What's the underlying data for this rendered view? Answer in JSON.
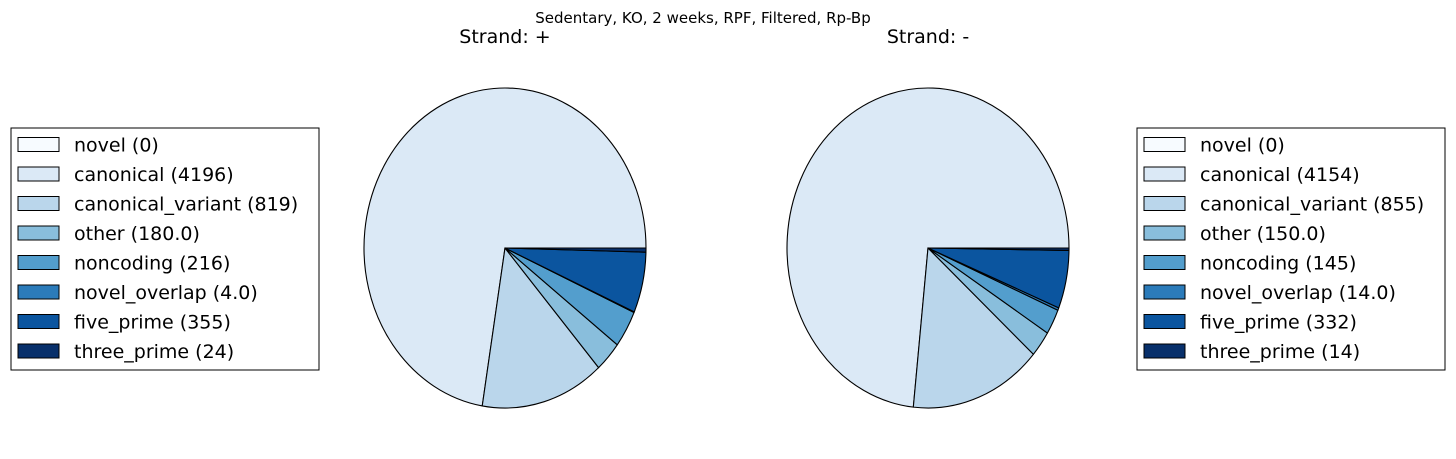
{
  "chart_data": [
    {
      "type": "pie",
      "suptitle": "Sedentary, KO, 2 weeks, RPF, Filtered, Rp-Bp",
      "title": "Strand: +",
      "legend_position": "left",
      "categories": [
        "novel",
        "canonical",
        "canonical_variant",
        "other",
        "noncoding",
        "novel_overlap",
        "five_prime",
        "three_prime"
      ],
      "values": [
        0,
        4196,
        819,
        180.0,
        216,
        4.0,
        355,
        24
      ],
      "legend_labels": [
        "novel (0)",
        "canonical (4196)",
        "canonical_variant (819)",
        "other (180.0)",
        "noncoding (216)",
        "novel_overlap (4.0)",
        "five_prime (355)",
        "three_prime (24)"
      ]
    },
    {
      "type": "pie",
      "title": "Strand: -",
      "legend_position": "right",
      "categories": [
        "novel",
        "canonical",
        "canonical_variant",
        "other",
        "noncoding",
        "novel_overlap",
        "five_prime",
        "three_prime"
      ],
      "values": [
        0,
        4154,
        855,
        150.0,
        145,
        14.0,
        332,
        14
      ],
      "legend_labels": [
        "novel (0)",
        "canonical (4154)",
        "canonical_variant (855)",
        "other (150.0)",
        "noncoding (145)",
        "novel_overlap (14.0)",
        "five_prime (332)",
        "three_prime (14)"
      ]
    }
  ],
  "colors": [
    "#f7fbff",
    "#dbe9f6",
    "#bad6eb",
    "#89bedc",
    "#539ecd",
    "#2b7bba",
    "#0b559f",
    "#08306b"
  ]
}
